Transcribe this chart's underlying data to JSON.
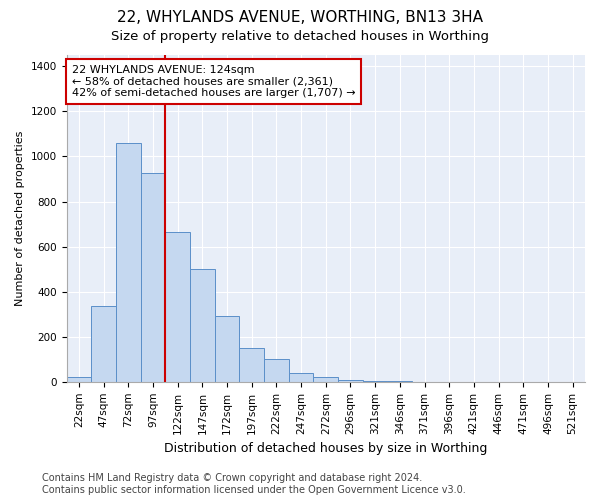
{
  "title": "22, WHYLANDS AVENUE, WORTHING, BN13 3HA",
  "subtitle": "Size of property relative to detached houses in Worthing",
  "xlabel": "Distribution of detached houses by size in Worthing",
  "ylabel": "Number of detached properties",
  "categories": [
    "22sqm",
    "47sqm",
    "72sqm",
    "97sqm",
    "122sqm",
    "147sqm",
    "172sqm",
    "197sqm",
    "222sqm",
    "247sqm",
    "272sqm",
    "296sqm",
    "321sqm",
    "346sqm",
    "371sqm",
    "396sqm",
    "421sqm",
    "446sqm",
    "471sqm",
    "496sqm",
    "521sqm"
  ],
  "values": [
    20,
    335,
    1060,
    925,
    665,
    500,
    290,
    150,
    100,
    40,
    20,
    10,
    5,
    2,
    1,
    1,
    1,
    1,
    1,
    1,
    1
  ],
  "bar_color": "#C5D8F0",
  "bar_edge_color": "#5B8FC9",
  "annotation_text_line1": "22 WHYLANDS AVENUE: 124sqm",
  "annotation_text_line2": "← 58% of detached houses are smaller (2,361)",
  "annotation_text_line3": "42% of semi-detached houses are larger (1,707) →",
  "annotation_box_color": "#FFFFFF",
  "annotation_box_edge_color": "#CC0000",
  "red_line_color": "#CC0000",
  "footer_line1": "Contains HM Land Registry data © Crown copyright and database right 2024.",
  "footer_line2": "Contains public sector information licensed under the Open Government Licence v3.0.",
  "ylim": [
    0,
    1450
  ],
  "background_color": "#E8EEF8",
  "figure_color": "#FFFFFF",
  "grid_color": "#FFFFFF",
  "title_fontsize": 11,
  "subtitle_fontsize": 9.5,
  "xlabel_fontsize": 9,
  "ylabel_fontsize": 8,
  "tick_fontsize": 7.5,
  "footer_fontsize": 7
}
